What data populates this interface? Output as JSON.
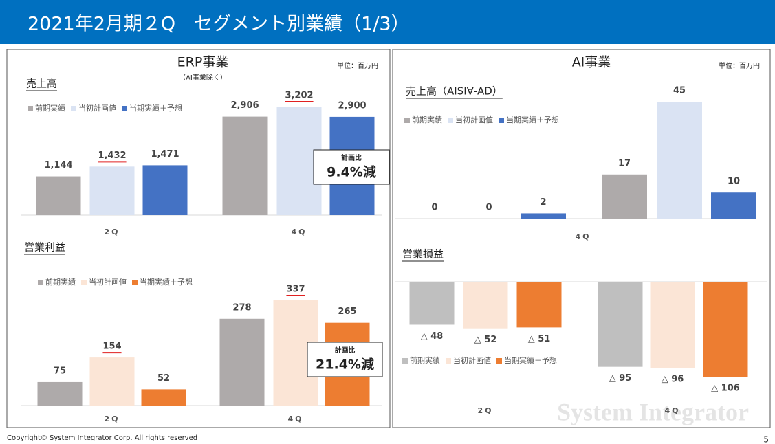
{
  "header": {
    "title": "2021年2月期２Q　セグメント別業績（1/3）"
  },
  "panels": [
    {
      "title": "ERP事業",
      "subtitle": "（AI事業除く）",
      "unit": "単位：百万円"
    },
    {
      "title": "AI事業",
      "unit": "単位：百万円"
    }
  ],
  "chart_data": [
    {
      "type": "bar",
      "title": "売上高",
      "categories": [
        "2Q",
        "4Q"
      ],
      "series": [
        {
          "name": "前期実績",
          "color": "#aeaaaa",
          "values": [
            1144,
            2906
          ],
          "value_labels": [
            "1,144",
            "2,906"
          ]
        },
        {
          "name": "当初計画値",
          "color": "#dae3f3",
          "values": [
            1432,
            3202
          ],
          "value_labels": [
            "1,432",
            "3,202"
          ],
          "label_underline": true
        },
        {
          "name": "当期実績＋予想",
          "color": "#4472c4",
          "values": [
            1471,
            2900
          ],
          "value_labels": [
            "1,471",
            "2,900"
          ]
        }
      ],
      "callout": {
        "label": "計画比",
        "text": "9.4%減"
      }
    },
    {
      "type": "bar",
      "title": "営業利益",
      "categories": [
        "2Q",
        "4Q"
      ],
      "series": [
        {
          "name": "前期実績",
          "color": "#aeaaaa",
          "values": [
            75,
            278
          ]
        },
        {
          "name": "当初計画値",
          "color": "#fbe5d6",
          "values": [
            154,
            337
          ],
          "label_underline": true
        },
        {
          "name": "当期実績＋予想",
          "color": "#ed7d31",
          "values": [
            52,
            265
          ]
        }
      ],
      "callout": {
        "label": "計画比",
        "text": "21.4%減"
      }
    },
    {
      "type": "bar",
      "title": "売上高（AISI∀-AD）",
      "categories": [
        null,
        "4Q"
      ],
      "series": [
        {
          "name": "前期実績",
          "color": "#aeaaaa",
          "values": [
            0,
            17
          ]
        },
        {
          "name": "当初計画値",
          "color": "#dae3f3",
          "values": [
            0,
            45
          ]
        },
        {
          "name": "当期実績＋予想",
          "color": "#4472c4",
          "values": [
            2,
            10
          ]
        }
      ]
    },
    {
      "type": "bar",
      "title": "営業損益",
      "categories": [
        "2Q",
        "4Q"
      ],
      "series": [
        {
          "name": "前期実績",
          "color": "#bfbfbf",
          "values": [
            -48,
            -95
          ],
          "value_labels": [
            "△ 48",
            "△ 95"
          ]
        },
        {
          "name": "当初計画値",
          "color": "#fbe5d6",
          "values": [
            -52,
            -96
          ],
          "value_labels": [
            "△ 52",
            "△ 96"
          ]
        },
        {
          "name": "当期実績＋予想",
          "color": "#ed7d31",
          "values": [
            -51,
            -106
          ],
          "value_labels": [
            "△ 51",
            "△ 106"
          ]
        }
      ]
    }
  ],
  "footer": {
    "copyright": "Copyright© System Integrator Corp. All rights reserved",
    "page": "5",
    "watermark": "System Integrator"
  }
}
